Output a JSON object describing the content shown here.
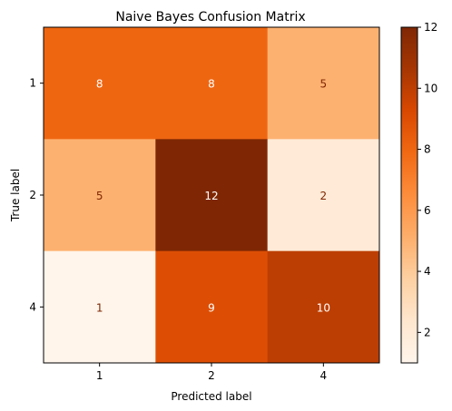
{
  "chart_data": {
    "type": "heatmap",
    "title": "Naive Bayes Confusion Matrix",
    "xlabel": "Predicted label",
    "ylabel": "True label",
    "x_categories": [
      "1",
      "2",
      "4"
    ],
    "y_categories": [
      "1",
      "2",
      "4"
    ],
    "values": [
      [
        8,
        8,
        5
      ],
      [
        5,
        12,
        2
      ],
      [
        1,
        9,
        10
      ]
    ],
    "colormap": "Oranges",
    "vmin": 1,
    "vmax": 12,
    "colorbar_ticks": [
      "2",
      "4",
      "6",
      "8",
      "10",
      "12"
    ],
    "colorbar_tick_values": [
      2,
      4,
      6,
      8,
      10,
      12
    ],
    "text_colors": {
      "light": "#ffffff",
      "dark": "#7f2704"
    }
  }
}
